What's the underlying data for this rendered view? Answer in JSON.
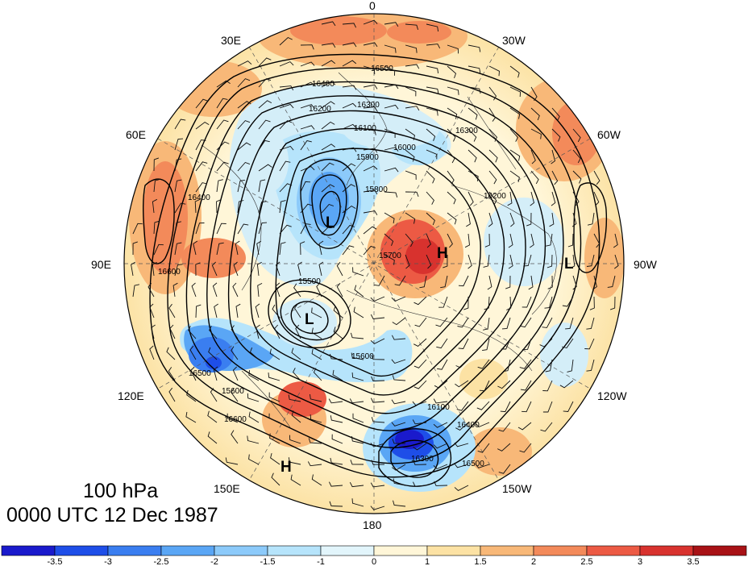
{
  "title": {
    "level": "100 hPa",
    "time": "0000 UTC 12 Dec 1987"
  },
  "longitude_labels": {
    "n0": "0",
    "n30w": "30W",
    "n60w": "60W",
    "n90w": "90W",
    "n120w": "120W",
    "n150w": "150W",
    "n180": "180",
    "n150e": "150E",
    "n120e": "120E",
    "n90e": "90E",
    "n60e": "60E",
    "n30e": "30E"
  },
  "pressure_centers": [
    {
      "letter": "H",
      "label": "high-polar-cap"
    },
    {
      "letter": "L",
      "label": "low-siberia"
    },
    {
      "letter": "L",
      "label": "low-central"
    },
    {
      "letter": "H",
      "label": "high-pacific"
    },
    {
      "letter": "L",
      "label": "low-alaska"
    }
  ],
  "contour_labels": [
    "16500",
    "16400",
    "16300",
    "16200",
    "16100",
    "16000",
    "15900",
    "15800",
    "16600",
    "15500",
    "15600",
    "15700",
    "16100",
    "16200",
    "16300",
    "16400",
    "16500",
    "16600",
    "15600",
    "16300",
    "16500",
    "16400"
  ],
  "colorbar": {
    "tick_labels": [
      "-3.5",
      "-3",
      "-2.5",
      "-2",
      "-1.5",
      "-1",
      "0",
      "1",
      "1.5",
      "2",
      "2.5",
      "3",
      "3.5"
    ],
    "colors": [
      "#1a1acc",
      "#1e4ee8",
      "#3a7ef0",
      "#5aa6f5",
      "#8ccafa",
      "#b6e4fb",
      "#e2f5fb",
      "#fff6d8",
      "#fce2a4",
      "#f8b878",
      "#f38a5a",
      "#ec5a44",
      "#d8322e",
      "#a81216"
    ]
  },
  "anomaly_colors": {
    "strong_neg": "#1a1acc",
    "neg2": "#3a7ef0",
    "neg1": "#8ccafa",
    "neg_light": "#d4eef8",
    "neutral": "#fff6d8",
    "pos_light": "#fce2a4",
    "pos1": "#f8b878",
    "pos2": "#ec5a44",
    "strong_pos": "#c42a28"
  }
}
